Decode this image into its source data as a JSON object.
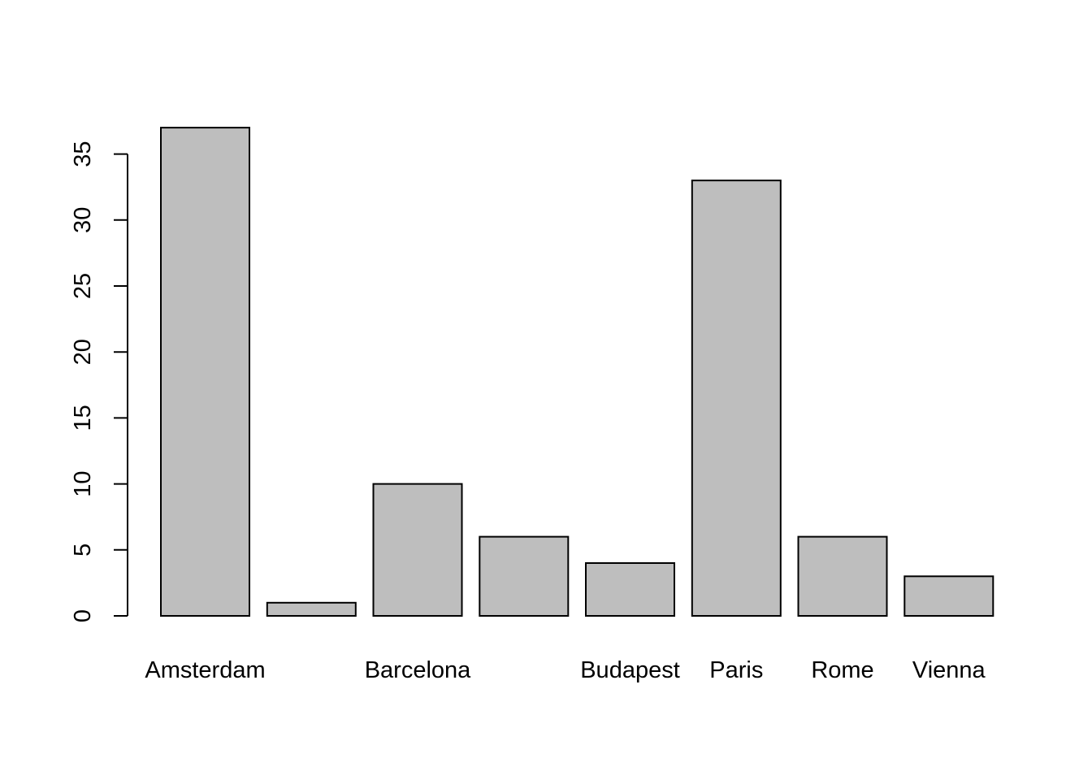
{
  "chart_data": {
    "type": "bar",
    "title": "",
    "xlabel": "",
    "ylabel": "",
    "categories": [
      "Amsterdam",
      "",
      "Barcelona",
      "",
      "Budapest",
      "Paris",
      "Rome",
      "Vienna"
    ],
    "values": [
      37,
      1,
      10,
      6,
      4,
      33,
      6,
      3
    ],
    "ylim": [
      0,
      37
    ],
    "yticks": [
      0,
      5,
      10,
      15,
      20,
      25,
      30,
      35
    ],
    "ytick_labels": [
      "0",
      "5",
      "10",
      "15",
      "20",
      "25",
      "30",
      "35"
    ],
    "grid": false,
    "legend": "none",
    "colors": {
      "bar_fill": "#bebebe",
      "bar_stroke": "#000000",
      "axis": "#000000",
      "background": "#ffffff"
    }
  }
}
